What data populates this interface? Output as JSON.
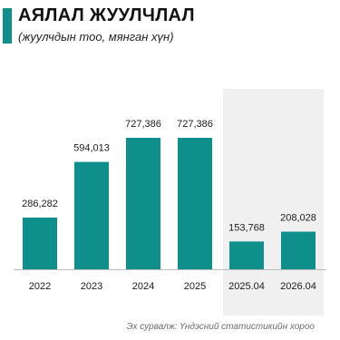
{
  "header": {
    "title": "АЯЛАЛ ЖУУЛЧЛАЛ",
    "subtitle": "(жуулчдын тоо, мянган хүн)"
  },
  "footer": {
    "source": "Эх сурвалж: Үндэсний статистикийн хороо"
  },
  "colors": {
    "accent": "#0f8f8c",
    "highlight_bg": "#f0f0f0"
  },
  "chart_data": {
    "type": "bar",
    "title": "АЯЛАЛ ЖУУЛЧЛАЛ",
    "subtitle": "(жуулчдын тоо, мянган хүн)",
    "categories": [
      "2022",
      "2023",
      "2024",
      "2025",
      "2025.04",
      "2026.04"
    ],
    "values": [
      286282,
      594013,
      727386,
      727386,
      153768,
      208028
    ],
    "value_labels": [
      "286,282",
      "594,013",
      "727,386",
      "727,386",
      "153,768",
      "208,028"
    ],
    "ylim": [
      0,
      727386
    ],
    "grid": false,
    "highlighted_categories": [
      "2025.04",
      "2026.04"
    ]
  }
}
